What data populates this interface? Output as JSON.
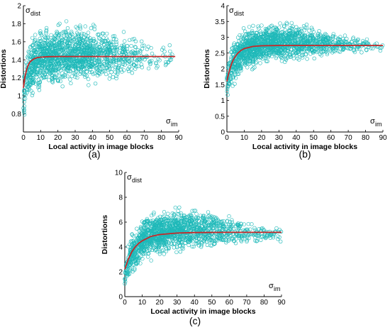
{
  "chart_data": [
    {
      "type": "scatter",
      "panel_label": "(a)",
      "xlabel": "Local activity in image blocks",
      "ylabel": "Distortions",
      "y_symbol": "σ",
      "y_symbol_sub": "dist",
      "x_symbol": "σ",
      "x_symbol_sub": "im",
      "xlim": [
        0,
        90
      ],
      "ylim": [
        0.6,
        2.0
      ],
      "xticks": [
        0,
        10,
        20,
        30,
        40,
        50,
        60,
        70,
        80,
        90
      ],
      "yticks": [
        0.8,
        1,
        1.2,
        1.4,
        1.6,
        1.8,
        2
      ],
      "ytick_labels": [
        "0.8",
        "1",
        "1.2",
        "1.4",
        "1.6",
        "1.8",
        "2"
      ],
      "series": [
        {
          "kind": "scatter",
          "color": "#1fb9b9",
          "marker": "circle-open",
          "envelope": {
            "x": [
              0,
              3,
              10,
              20,
              30,
              45,
              60,
              75,
              87
            ],
            "low": [
              0.75,
              0.95,
              1.05,
              1.1,
              1.12,
              1.15,
              1.2,
              1.25,
              1.3
            ],
            "high": [
              1.25,
              1.6,
              1.75,
              1.8,
              1.8,
              1.78,
              1.7,
              1.6,
              1.55
            ]
          },
          "density": {
            "x": [
              0,
              5,
              15,
              30,
              50,
              70,
              88
            ],
            "weight": [
              3,
              6,
              7,
              6,
              3,
              1,
              0.3
            ]
          }
        },
        {
          "kind": "line",
          "color": "#c62828",
          "x": [
            0,
            1,
            2,
            3,
            4,
            6,
            8,
            10,
            15,
            20,
            30,
            40,
            60,
            75,
            88
          ],
          "y": [
            1.09,
            1.22,
            1.3,
            1.35,
            1.38,
            1.41,
            1.425,
            1.43,
            1.435,
            1.437,
            1.437,
            1.437,
            1.437,
            1.437,
            1.437
          ]
        }
      ]
    },
    {
      "type": "scatter",
      "panel_label": "(b)",
      "xlabel": "Local activity in image blocks",
      "ylabel": "Distortions",
      "y_symbol": "σ",
      "y_symbol_sub": "dist",
      "x_symbol": "σ",
      "x_symbol_sub": "im",
      "xlim": [
        0,
        90
      ],
      "ylim": [
        0,
        4
      ],
      "xticks": [
        0,
        10,
        20,
        30,
        40,
        50,
        60,
        70,
        80,
        90
      ],
      "yticks": [
        0,
        0.5,
        1,
        1.5,
        2,
        2.5,
        3,
        3.5,
        4
      ],
      "ytick_labels": [
        "0",
        "0.5",
        "1",
        "1.5",
        "2",
        "2.5",
        "3",
        "3.5",
        "4"
      ],
      "series": [
        {
          "kind": "scatter",
          "color": "#1fb9b9",
          "marker": "circle-open",
          "envelope": {
            "x": [
              0,
              3,
              10,
              20,
              30,
              45,
              60,
              75,
              90
            ],
            "low": [
              0.9,
              1.4,
              1.9,
              2.1,
              2.2,
              2.3,
              2.4,
              2.5,
              2.55
            ],
            "high": [
              2.1,
              2.9,
              3.3,
              3.45,
              3.5,
              3.4,
              3.2,
              3.0,
              2.9
            ]
          },
          "density": {
            "x": [
              0,
              5,
              15,
              30,
              50,
              70,
              90
            ],
            "weight": [
              3,
              6,
              7,
              6,
              3,
              1,
              0.3
            ]
          }
        },
        {
          "kind": "line",
          "color": "#c62828",
          "x": [
            0,
            1,
            2,
            3,
            4,
            6,
            8,
            10,
            15,
            20,
            30,
            40,
            60,
            75,
            90
          ],
          "y": [
            1.6,
            1.85,
            2.05,
            2.2,
            2.32,
            2.48,
            2.58,
            2.64,
            2.71,
            2.73,
            2.74,
            2.74,
            2.74,
            2.74,
            2.74
          ]
        }
      ]
    },
    {
      "type": "scatter",
      "panel_label": "(c)",
      "xlabel": "Local activity in image blocks",
      "ylabel": "Distortions",
      "y_symbol": "σ",
      "y_symbol_sub": "dist",
      "x_symbol": "σ",
      "x_symbol_sub": "im",
      "xlim": [
        0,
        90
      ],
      "ylim": [
        0,
        10
      ],
      "xticks": [
        0,
        10,
        20,
        30,
        40,
        50,
        60,
        70,
        80,
        90
      ],
      "yticks": [
        0,
        2,
        4,
        6,
        8,
        10
      ],
      "ytick_labels": [
        "0",
        "2",
        "4",
        "6",
        "8",
        "10"
      ],
      "series": [
        {
          "kind": "scatter",
          "color": "#1fb9b9",
          "marker": "circle-open",
          "envelope": {
            "x": [
              0,
              3,
              10,
              20,
              30,
              45,
              60,
              75,
              90
            ],
            "low": [
              0.6,
              1.5,
              2.8,
              3.3,
              3.6,
              3.8,
              4.0,
              4.2,
              4.4
            ],
            "high": [
              3.0,
              4.8,
              6.3,
              7.0,
              7.2,
              7.0,
              6.6,
              6.0,
              5.5
            ]
          },
          "density": {
            "x": [
              0,
              5,
              15,
              30,
              50,
              70,
              90
            ],
            "weight": [
              3,
              6,
              7,
              6,
              3,
              1,
              0.3
            ]
          }
        },
        {
          "kind": "line",
          "color": "#c62828",
          "x": [
            0,
            1,
            2,
            3,
            4,
            6,
            8,
            10,
            15,
            20,
            30,
            40,
            60,
            75,
            90
          ],
          "y": [
            2.2,
            2.6,
            3.0,
            3.3,
            3.6,
            4.0,
            4.3,
            4.5,
            4.85,
            5.0,
            5.12,
            5.16,
            5.18,
            5.18,
            5.18
          ]
        }
      ]
    }
  ]
}
